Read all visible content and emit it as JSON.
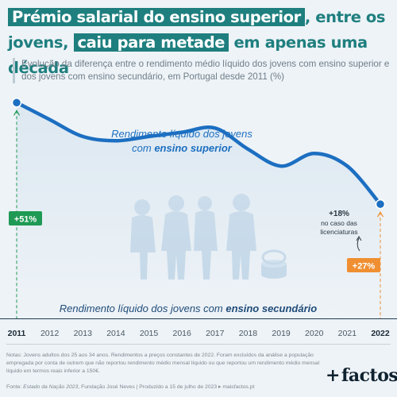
{
  "header": {
    "title_parts": [
      "Prémio salarial do ensino superior",
      ", entre os jovens,",
      "caiu para metade",
      "em apenas uma década"
    ],
    "subtitle": "Evolução da diferença entre o rendimento médio líquido dos jovens com ensino superior e dos jovens com ensino secundário, em Portugal desde 2011 (%)"
  },
  "chart_data": {
    "type": "line",
    "x": [
      "2011",
      "2012",
      "2013",
      "2014",
      "2015",
      "2016",
      "2017",
      "2018",
      "2019",
      "2020",
      "2021",
      "2022"
    ],
    "series": [
      {
        "name": "Rendimento líquido dos jovens com ensino superior",
        "values": [
          51,
          47,
          43,
          42,
          43,
          44,
          45,
          40,
          36,
          39,
          36,
          27
        ]
      }
    ],
    "baseline_label_parts": [
      "Rendimento líquido dos jovens com ",
      "ensino secundário"
    ],
    "line_label_parts": [
      "Rendimento líquido dos jovens",
      "com ",
      "ensino superior"
    ],
    "annotations": {
      "start": "+51%",
      "end": "+27%",
      "licenciaturas_value": "+18%",
      "licenciaturas_text": [
        "no caso das",
        "licenciaturas"
      ]
    },
    "highlight_years": [
      "2011",
      "2022"
    ],
    "ylim": [
      0,
      55
    ],
    "colors": {
      "line": "#1c6fc1",
      "start": "#1f9a54",
      "end": "#ef8f31",
      "baseline_text": "#1f4b78"
    }
  },
  "footer": {
    "notes": "Notas: Jovens adultos dos 25 aos 34 anos. Rendimentos a preços constantes de 2022. Foram excluídos da análise a população empregada por conta de outrem que não reportou rendimento médio mensal líquido ou que reportou um rendimento médio mensal líquido em termos reais inferior a 150€.",
    "source_label": "Fonte: ",
    "source_title": "Estado da Nação 2023",
    "source_rest": ", Fundação José Neves  |  Produzido a 15 de julho de 2023  ▸ maisfactos.pt",
    "logo_plus": "+",
    "logo_text": "factos"
  }
}
